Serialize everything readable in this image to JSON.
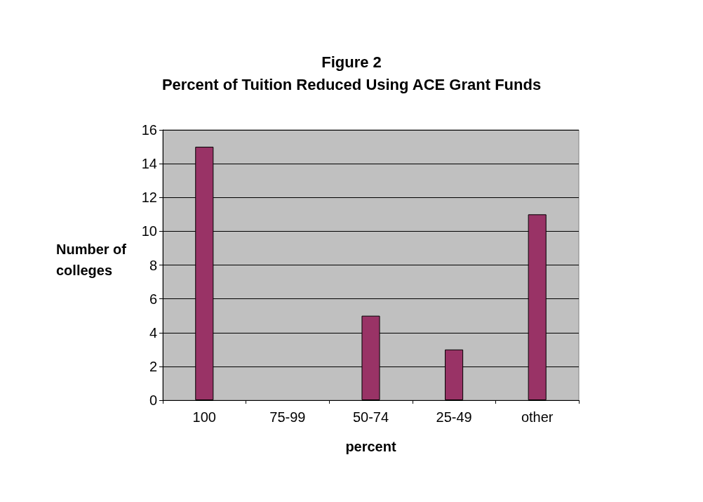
{
  "chart_data": {
    "type": "bar",
    "title": "Figure 2",
    "subtitle": "Percent of Tuition Reduced Using ACE Grant Funds",
    "xlabel": "percent",
    "ylabel": "Number of colleges",
    "categories": [
      "100",
      "75-99",
      "50-74",
      "25-49",
      "other"
    ],
    "values": [
      15,
      0,
      5,
      3,
      11
    ],
    "color": "#993366",
    "ylim": [
      0,
      16
    ],
    "yticks": [
      0,
      2,
      4,
      6,
      8,
      10,
      12,
      14,
      16
    ],
    "grid": "y"
  }
}
